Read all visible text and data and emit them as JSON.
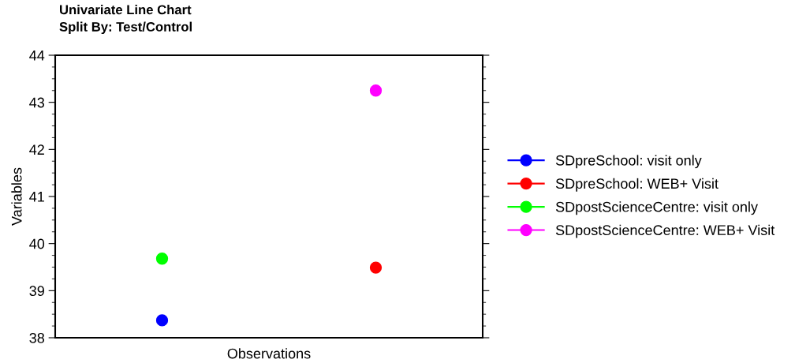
{
  "chart_data": {
    "type": "line",
    "title": "Univariate Line Chart",
    "subtitle": "Split By: Test/Control",
    "xlabel": "Observations",
    "ylabel": "Variables",
    "categories": [
      null,
      null
    ],
    "series": [
      {
        "name": "SDpreSchool: visit only",
        "color": "#0000ff",
        "values": [
          38.37,
          null
        ]
      },
      {
        "name": "SDpreSchool: WEB+ Visit",
        "color": "#ff0000",
        "values": [
          null,
          39.49
        ]
      },
      {
        "name": "SDpostScienceCentre: visit only",
        "color": "#00ff00",
        "values": [
          39.68,
          null
        ]
      },
      {
        "name": "SDpostScienceCentre: WEB+ Visit",
        "color": "#ff00ff",
        "values": [
          null,
          43.25
        ]
      }
    ],
    "ylim": [
      38,
      44
    ],
    "yticks": [
      38,
      39,
      40,
      41,
      42,
      43,
      44
    ],
    "grid": false,
    "legend": "right",
    "marker": "circle",
    "line_style": "solid"
  }
}
